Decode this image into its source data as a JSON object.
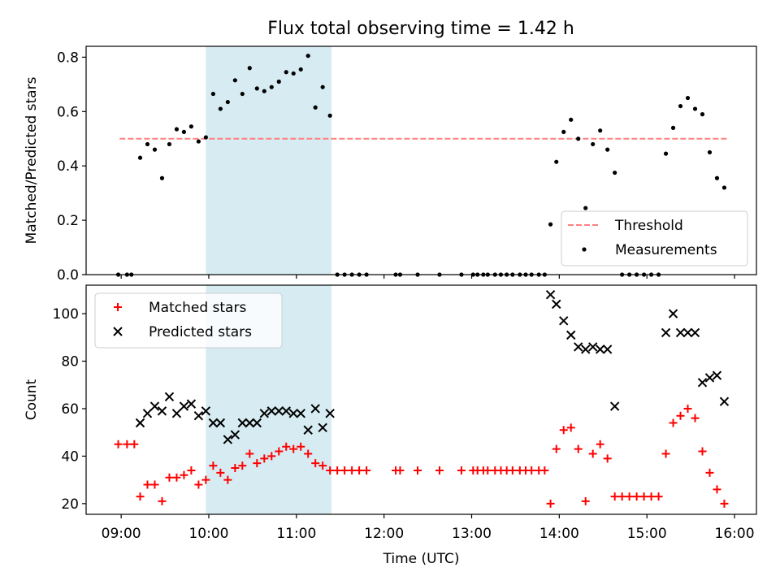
{
  "figure": {
    "title": "Flux total observing time = 1.42 h"
  },
  "chart_data": [
    {
      "type": "scatter",
      "title": "Flux total observing time = 1.42 h",
      "xlabel": "",
      "ylabel": "Matched/Predicted stars",
      "xlim": [
        "08:36",
        "16:15"
      ],
      "ylim": [
        0,
        0.84
      ],
      "yticks": [
        0.0,
        0.2,
        0.4,
        0.6,
        0.8
      ],
      "ytick_labels": [
        "0.0",
        "0.2",
        "0.4",
        "0.6",
        "0.8"
      ],
      "shaded_span": {
        "start": "09:58",
        "end": "11:24",
        "color": "#add8e6"
      },
      "legend": {
        "placement": "lower right",
        "entries": [
          "Threshold",
          "Measurements"
        ]
      },
      "threshold": {
        "name": "Threshold",
        "value": 0.5,
        "x_start": "08:59",
        "x_end": "15:55",
        "color": "#ff8080",
        "style": "dashed"
      },
      "series": [
        {
          "name": "Measurements",
          "color": "#000000",
          "marker": "dot",
          "points": [
            [
              "08:58",
              0
            ],
            [
              "09:04",
              0
            ],
            [
              "09:07",
              0
            ],
            [
              "09:13",
              0.43
            ],
            [
              "09:18",
              0.48
            ],
            [
              "09:23",
              0.46
            ],
            [
              "09:28",
              0.355
            ],
            [
              "09:33",
              0.48
            ],
            [
              "09:38",
              0.535
            ],
            [
              "09:43",
              0.525
            ],
            [
              "09:48",
              0.545
            ],
            [
              "09:53",
              0.49
            ],
            [
              "09:58",
              0.505
            ],
            [
              "10:03",
              0.665
            ],
            [
              "10:08",
              0.61
            ],
            [
              "10:13",
              0.635
            ],
            [
              "10:18",
              0.715
            ],
            [
              "10:23",
              0.665
            ],
            [
              "10:28",
              0.76
            ],
            [
              "10:33",
              0.685
            ],
            [
              "10:38",
              0.675
            ],
            [
              "10:43",
              0.69
            ],
            [
              "10:48",
              0.71
            ],
            [
              "10:53",
              0.745
            ],
            [
              "10:58",
              0.74
            ],
            [
              "11:03",
              0.755
            ],
            [
              "11:08",
              0.805
            ],
            [
              "11:13",
              0.615
            ],
            [
              "11:18",
              0.69
            ],
            [
              "11:23",
              0.585
            ],
            [
              "11:28",
              0
            ],
            [
              "11:33",
              0
            ],
            [
              "11:38",
              0
            ],
            [
              "11:43",
              0
            ],
            [
              "11:48",
              0
            ],
            [
              "12:08",
              0
            ],
            [
              "12:11",
              0
            ],
            [
              "12:23",
              0
            ],
            [
              "12:38",
              0
            ],
            [
              "12:53",
              0
            ],
            [
              "13:01",
              0
            ],
            [
              "13:04",
              0
            ],
            [
              "13:08",
              0
            ],
            [
              "13:11",
              0
            ],
            [
              "13:16",
              0
            ],
            [
              "13:20",
              0
            ],
            [
              "13:24",
              0
            ],
            [
              "13:28",
              0
            ],
            [
              "13:33",
              0
            ],
            [
              "13:37",
              0
            ],
            [
              "13:41",
              0
            ],
            [
              "13:46",
              0
            ],
            [
              "13:50",
              0
            ],
            [
              "13:54",
              0.185
            ],
            [
              "13:58",
              0.415
            ],
            [
              "14:03",
              0.525
            ],
            [
              "14:08",
              0.57
            ],
            [
              "14:13",
              0.5
            ],
            [
              "14:18",
              0.245
            ],
            [
              "14:23",
              0.48
            ],
            [
              "14:28",
              0.53
            ],
            [
              "14:33",
              0.46
            ],
            [
              "14:38",
              0.375
            ],
            [
              "14:43",
              0
            ],
            [
              "14:48",
              0
            ],
            [
              "14:53",
              0
            ],
            [
              "14:58",
              0
            ],
            [
              "15:03",
              0
            ],
            [
              "15:08",
              0
            ],
            [
              "15:13",
              0.445
            ],
            [
              "15:18",
              0.54
            ],
            [
              "15:23",
              0.62
            ],
            [
              "15:28",
              0.65
            ],
            [
              "15:33",
              0.61
            ],
            [
              "15:38",
              0.59
            ],
            [
              "15:43",
              0.45
            ],
            [
              "15:48",
              0.355
            ],
            [
              "15:53",
              0.32
            ]
          ]
        }
      ]
    },
    {
      "type": "scatter",
      "title": "",
      "xlabel": "Time (UTC)",
      "ylabel": "Count",
      "xlim": [
        "08:36",
        "16:15"
      ],
      "ylim": [
        15.5,
        112
      ],
      "yticks": [
        20,
        40,
        60,
        80,
        100
      ],
      "ytick_labels": [
        "20",
        "40",
        "60",
        "80",
        "100"
      ],
      "xticks": [
        "09:00",
        "10:00",
        "11:00",
        "12:00",
        "13:00",
        "14:00",
        "15:00",
        "16:00"
      ],
      "xtick_labels": [
        "09:00",
        "10:00",
        "11:00",
        "12:00",
        "13:00",
        "14:00",
        "15:00",
        "16:00"
      ],
      "shaded_span": {
        "start": "09:58",
        "end": "11:24",
        "color": "#add8e6"
      },
      "legend": {
        "placement": "upper left",
        "entries": [
          "Matched stars",
          "Predicted stars"
        ]
      },
      "series": [
        {
          "name": "Matched stars",
          "color": "#ff0000",
          "marker": "plus",
          "points": [
            [
              "08:58",
              45
            ],
            [
              "09:04",
              45
            ],
            [
              "09:09",
              45
            ],
            [
              "09:13",
              23
            ],
            [
              "09:18",
              28
            ],
            [
              "09:23",
              28
            ],
            [
              "09:28",
              21
            ],
            [
              "09:33",
              31
            ],
            [
              "09:38",
              31
            ],
            [
              "09:43",
              32
            ],
            [
              "09:48",
              34
            ],
            [
              "09:53",
              28
            ],
            [
              "09:58",
              30
            ],
            [
              "10:03",
              36
            ],
            [
              "10:08",
              33
            ],
            [
              "10:13",
              30
            ],
            [
              "10:18",
              35
            ],
            [
              "10:23",
              36
            ],
            [
              "10:28",
              41
            ],
            [
              "10:33",
              37
            ],
            [
              "10:38",
              39
            ],
            [
              "10:43",
              40
            ],
            [
              "10:48",
              42
            ],
            [
              "10:53",
              44
            ],
            [
              "10:58",
              43
            ],
            [
              "11:03",
              44
            ],
            [
              "11:08",
              41
            ],
            [
              "11:13",
              37
            ],
            [
              "11:18",
              36
            ],
            [
              "11:23",
              34
            ],
            [
              "11:28",
              34
            ],
            [
              "11:33",
              34
            ],
            [
              "11:38",
              34
            ],
            [
              "11:43",
              34
            ],
            [
              "11:48",
              34
            ],
            [
              "12:08",
              34
            ],
            [
              "12:11",
              34
            ],
            [
              "12:23",
              34
            ],
            [
              "12:38",
              34
            ],
            [
              "12:53",
              34
            ],
            [
              "13:01",
              34
            ],
            [
              "13:04",
              34
            ],
            [
              "13:08",
              34
            ],
            [
              "13:11",
              34
            ],
            [
              "13:16",
              34
            ],
            [
              "13:20",
              34
            ],
            [
              "13:24",
              34
            ],
            [
              "13:28",
              34
            ],
            [
              "13:33",
              34
            ],
            [
              "13:37",
              34
            ],
            [
              "13:41",
              34
            ],
            [
              "13:46",
              34
            ],
            [
              "13:50",
              34
            ],
            [
              "13:54",
              20
            ],
            [
              "13:58",
              43
            ],
            [
              "14:03",
              51
            ],
            [
              "14:08",
              52
            ],
            [
              "14:13",
              43
            ],
            [
              "14:18",
              21
            ],
            [
              "14:23",
              41
            ],
            [
              "14:28",
              45
            ],
            [
              "14:33",
              39
            ],
            [
              "14:38",
              23
            ],
            [
              "14:43",
              23
            ],
            [
              "14:48",
              23
            ],
            [
              "14:53",
              23
            ],
            [
              "14:58",
              23
            ],
            [
              "15:03",
              23
            ],
            [
              "15:08",
              23
            ],
            [
              "15:13",
              41
            ],
            [
              "15:18",
              54
            ],
            [
              "15:23",
              57
            ],
            [
              "15:28",
              60
            ],
            [
              "15:33",
              56
            ],
            [
              "15:38",
              42
            ],
            [
              "15:43",
              33
            ],
            [
              "15:48",
              26
            ],
            [
              "15:53",
              20
            ]
          ]
        },
        {
          "name": "Predicted stars",
          "color": "#000000",
          "marker": "x",
          "points": [
            [
              "09:13",
              54
            ],
            [
              "09:18",
              58
            ],
            [
              "09:23",
              61
            ],
            [
              "09:28",
              59
            ],
            [
              "09:33",
              65
            ],
            [
              "09:38",
              58
            ],
            [
              "09:43",
              61
            ],
            [
              "09:48",
              62
            ],
            [
              "09:53",
              57
            ],
            [
              "09:58",
              59
            ],
            [
              "10:03",
              54
            ],
            [
              "10:08",
              54
            ],
            [
              "10:13",
              47
            ],
            [
              "10:18",
              49
            ],
            [
              "10:23",
              54
            ],
            [
              "10:28",
              54
            ],
            [
              "10:33",
              54
            ],
            [
              "10:38",
              58
            ],
            [
              "10:43",
              59
            ],
            [
              "10:48",
              59
            ],
            [
              "10:53",
              59
            ],
            [
              "10:58",
              58
            ],
            [
              "11:03",
              58
            ],
            [
              "11:08",
              51
            ],
            [
              "11:13",
              60
            ],
            [
              "11:18",
              52
            ],
            [
              "11:23",
              58
            ],
            [
              "13:54",
              108
            ],
            [
              "13:58",
              104
            ],
            [
              "14:03",
              97
            ],
            [
              "14:08",
              91
            ],
            [
              "14:13",
              86
            ],
            [
              "14:18",
              85
            ],
            [
              "14:23",
              86
            ],
            [
              "14:28",
              85
            ],
            [
              "14:33",
              85
            ],
            [
              "14:38",
              61
            ],
            [
              "15:13",
              92
            ],
            [
              "15:18",
              100
            ],
            [
              "15:23",
              92
            ],
            [
              "15:28",
              92
            ],
            [
              "15:33",
              92
            ],
            [
              "15:38",
              71
            ],
            [
              "15:43",
              73
            ],
            [
              "15:48",
              74
            ],
            [
              "15:53",
              63
            ]
          ]
        }
      ]
    }
  ]
}
